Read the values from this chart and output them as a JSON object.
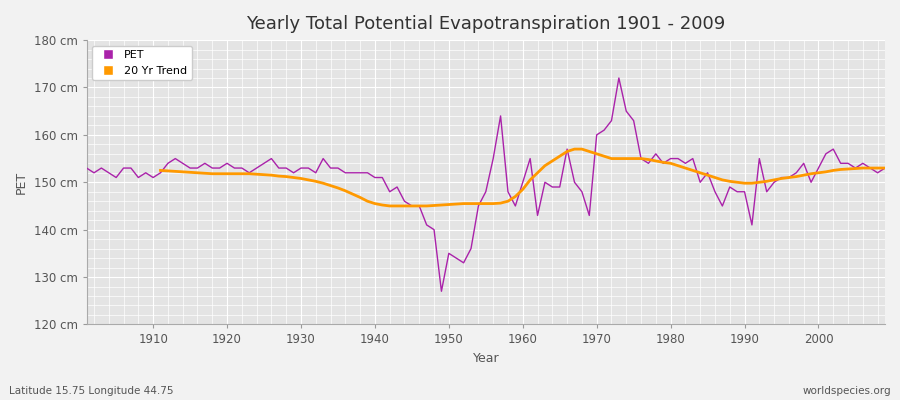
{
  "title": "Yearly Total Potential Evapotranspiration 1901 - 2009",
  "xlabel": "Year",
  "ylabel": "PET",
  "lat_lon_label": "Latitude 15.75 Longitude 44.75",
  "source_label": "worldspecies.org",
  "xlim": [
    1901,
    2009
  ],
  "ylim": [
    120,
    180
  ],
  "yticks": [
    120,
    130,
    140,
    150,
    160,
    170,
    180
  ],
  "ytick_labels": [
    "120 cm",
    "130 cm",
    "140 cm",
    "150 cm",
    "160 cm",
    "170 cm",
    "180 cm"
  ],
  "xticks": [
    1910,
    1920,
    1930,
    1940,
    1950,
    1960,
    1970,
    1980,
    1990,
    2000
  ],
  "pet_color": "#aa22aa",
  "trend_color": "#ff9900",
  "fig_bg_color": "#f0f0f0",
  "plot_bg_color": "#e0e0e0",
  "grid_color": "#ffffff",
  "title_fontsize": 13,
  "pet_linewidth": 1.0,
  "trend_linewidth": 2.0,
  "years": [
    1901,
    1902,
    1903,
    1904,
    1905,
    1906,
    1907,
    1908,
    1909,
    1910,
    1911,
    1912,
    1913,
    1914,
    1915,
    1916,
    1917,
    1918,
    1919,
    1920,
    1921,
    1922,
    1923,
    1924,
    1925,
    1926,
    1927,
    1928,
    1929,
    1930,
    1931,
    1932,
    1933,
    1934,
    1935,
    1936,
    1937,
    1938,
    1939,
    1940,
    1941,
    1942,
    1943,
    1944,
    1945,
    1946,
    1947,
    1948,
    1949,
    1950,
    1951,
    1952,
    1953,
    1954,
    1955,
    1956,
    1957,
    1958,
    1959,
    1960,
    1961,
    1962,
    1963,
    1964,
    1965,
    1966,
    1967,
    1968,
    1969,
    1970,
    1971,
    1972,
    1973,
    1974,
    1975,
    1976,
    1977,
    1978,
    1979,
    1980,
    1981,
    1982,
    1983,
    1984,
    1985,
    1986,
    1987,
    1988,
    1989,
    1990,
    1991,
    1992,
    1993,
    1994,
    1995,
    1996,
    1997,
    1998,
    1999,
    2000,
    2001,
    2002,
    2003,
    2004,
    2005,
    2006,
    2007,
    2008,
    2009
  ],
  "pet_values": [
    153,
    152,
    153,
    152,
    151,
    153,
    153,
    151,
    152,
    151,
    152,
    154,
    155,
    154,
    153,
    153,
    154,
    153,
    153,
    154,
    153,
    153,
    152,
    153,
    154,
    155,
    153,
    153,
    152,
    153,
    153,
    152,
    155,
    153,
    153,
    152,
    152,
    152,
    152,
    151,
    151,
    148,
    149,
    146,
    145,
    145,
    141,
    140,
    127,
    135,
    134,
    133,
    136,
    145,
    148,
    155,
    164,
    148,
    145,
    150,
    155,
    143,
    150,
    149,
    149,
    157,
    150,
    148,
    143,
    160,
    161,
    163,
    172,
    165,
    163,
    155,
    154,
    156,
    154,
    155,
    155,
    154,
    155,
    150,
    152,
    148,
    145,
    149,
    148,
    148,
    141,
    155,
    148,
    150,
    151,
    151,
    152,
    154,
    150,
    153,
    156,
    157,
    154,
    154,
    153,
    154,
    153,
    152,
    153
  ],
  "trend_years": [
    1911,
    1912,
    1913,
    1914,
    1915,
    1916,
    1917,
    1918,
    1919,
    1920,
    1921,
    1922,
    1923,
    1924,
    1925,
    1926,
    1927,
    1928,
    1929,
    1930,
    1931,
    1932,
    1933,
    1934,
    1935,
    1936,
    1937,
    1938,
    1939,
    1940,
    1941,
    1942,
    1943,
    1944,
    1945,
    1946,
    1947,
    1948,
    1949,
    1950,
    1951,
    1952,
    1953,
    1954,
    1955,
    1956,
    1957,
    1958,
    1959,
    1960,
    1961,
    1962,
    1963,
    1964,
    1965,
    1966,
    1967,
    1968,
    1969,
    1970,
    1971,
    1972,
    1973,
    1974,
    1975,
    1976,
    1977,
    1978,
    1979,
    1980,
    1981,
    1982,
    1983,
    1984,
    1985,
    1986,
    1987,
    1988,
    1989,
    1990,
    1991,
    1992,
    1993,
    1994,
    1995,
    1996,
    1997,
    1998,
    1999,
    2000,
    2001,
    2002,
    2003,
    2004,
    2005,
    2006,
    2007,
    2008,
    2009
  ],
  "trend_values": [
    152.5,
    152.4,
    152.3,
    152.2,
    152.1,
    152.0,
    151.9,
    151.8,
    151.8,
    151.8,
    151.8,
    151.8,
    151.8,
    151.7,
    151.6,
    151.5,
    151.3,
    151.2,
    151.0,
    150.8,
    150.5,
    150.2,
    149.8,
    149.3,
    148.8,
    148.2,
    147.5,
    146.8,
    146.0,
    145.5,
    145.2,
    145.0,
    145.0,
    145.0,
    145.0,
    145.0,
    145.0,
    145.1,
    145.2,
    145.3,
    145.4,
    145.5,
    145.5,
    145.5,
    145.5,
    145.5,
    145.6,
    146.0,
    147.0,
    148.5,
    150.5,
    152.0,
    153.5,
    154.5,
    155.5,
    156.5,
    157.0,
    157.0,
    156.5,
    156.0,
    155.5,
    155.0,
    155.0,
    155.0,
    155.0,
    155.0,
    154.8,
    154.5,
    154.2,
    154.0,
    153.5,
    153.0,
    152.5,
    152.0,
    151.5,
    151.0,
    150.5,
    150.2,
    150.0,
    149.8,
    149.8,
    150.0,
    150.2,
    150.5,
    150.8,
    151.0,
    151.2,
    151.5,
    151.8,
    152.0,
    152.2,
    152.5,
    152.7,
    152.8,
    152.9,
    153.0,
    153.0,
    153.0,
    153.0
  ]
}
